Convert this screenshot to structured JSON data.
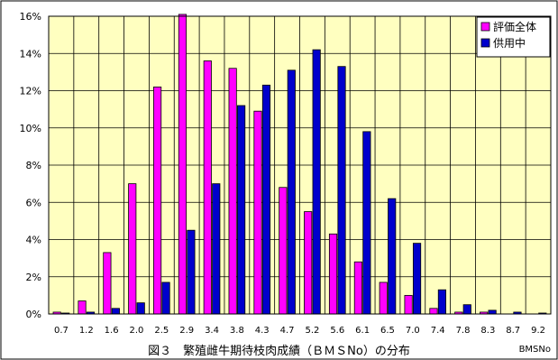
{
  "chart_data": {
    "type": "bar",
    "title": "図３　繁殖雌牛期待枝肉成績（ＢＭＳNo）の分布",
    "xlabel": "BMSNo",
    "ylabel": "",
    "ylim": [
      0,
      16
    ],
    "yticks": [
      "0%",
      "2%",
      "4%",
      "6%",
      "8%",
      "10%",
      "12%",
      "14%",
      "16%"
    ],
    "grid": true,
    "legend_position": "top-right",
    "categories": [
      "0.7",
      "1.2",
      "1.6",
      "2.0",
      "2.5",
      "2.9",
      "3.4",
      "3.8",
      "4.3",
      "4.7",
      "5.2",
      "5.6",
      "6.1",
      "6.5",
      "7.0",
      "7.4",
      "7.8",
      "8.3",
      "8.7",
      "9.2"
    ],
    "series": [
      {
        "name": "評価全体",
        "color": "#ff00ff",
        "values": [
          0.1,
          0.7,
          3.3,
          7.0,
          12.2,
          16.1,
          13.6,
          13.2,
          10.9,
          6.8,
          5.5,
          4.3,
          2.8,
          1.7,
          1.0,
          0.3,
          0.1,
          0.1,
          0.0,
          0.0
        ]
      },
      {
        "name": "供用中",
        "color": "#0000cc",
        "values": [
          0.05,
          0.1,
          0.3,
          0.6,
          1.7,
          4.5,
          7.0,
          11.2,
          12.3,
          13.1,
          14.2,
          13.3,
          9.8,
          6.2,
          3.8,
          1.3,
          0.5,
          0.2,
          0.1,
          0.05
        ]
      }
    ]
  }
}
